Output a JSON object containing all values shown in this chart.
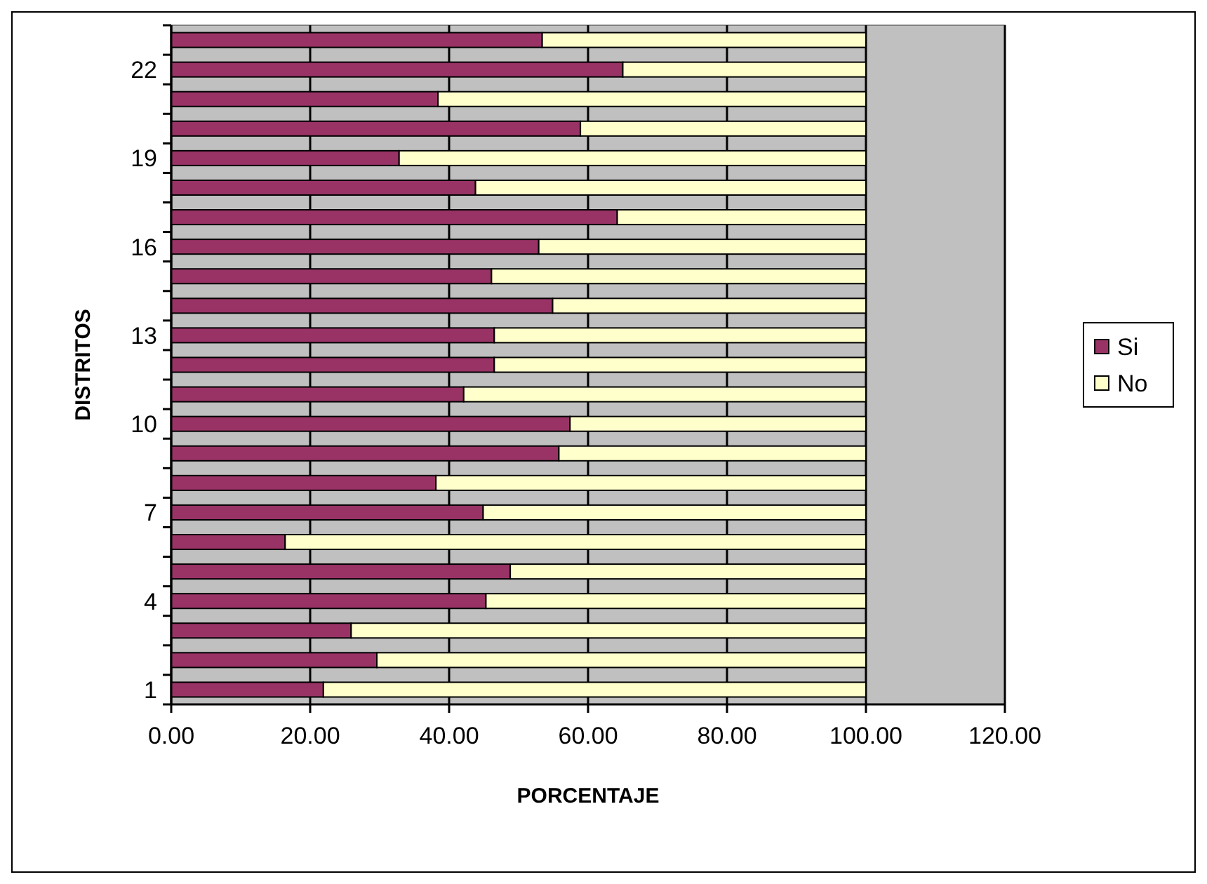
{
  "chart_data": {
    "type": "bar",
    "orientation": "horizontal",
    "stacked": true,
    "xlabel": "PORCENTAJE",
    "ylabel": "DISTRITOS",
    "categories": [
      null,
      "22",
      null,
      null,
      "19",
      null,
      null,
      "16",
      null,
      null,
      "13",
      null,
      null,
      "10",
      null,
      null,
      "7",
      null,
      null,
      "4",
      null,
      null,
      "1"
    ],
    "series": [
      {
        "name": "Si",
        "color": "#993366",
        "values": [
          53.4,
          65,
          38.4,
          58.9,
          32.8,
          43.8,
          64.2,
          52.9,
          46.1,
          54.9,
          46.5,
          46.5,
          42.1,
          57.4,
          55.8,
          38.1,
          44.9,
          16.4,
          48.8,
          45.3,
          25.9,
          29.6,
          21.9
        ]
      },
      {
        "name": "No",
        "color": "#ffffcc",
        "values": [
          46.6,
          35,
          61.6,
          41.1,
          67.2,
          56.2,
          35.8,
          47.1,
          53.9,
          45.1,
          53.5,
          53.5,
          57.9,
          42.6,
          44.2,
          61.9,
          55.1,
          83.6,
          51.2,
          54.7,
          74.1,
          70.4,
          78.1
        ]
      }
    ],
    "xlim": [
      0,
      120
    ],
    "xticks": [
      {
        "value": 0,
        "label": "0.00"
      },
      {
        "value": 20,
        "label": "20.00"
      },
      {
        "value": 40,
        "label": "40.00"
      },
      {
        "value": 60,
        "label": "60.00"
      },
      {
        "value": 80,
        "label": "80.00"
      },
      {
        "value": 100,
        "label": "100.00"
      },
      {
        "value": 120,
        "label": "120.00"
      }
    ],
    "grid": "x",
    "legend": "right"
  }
}
